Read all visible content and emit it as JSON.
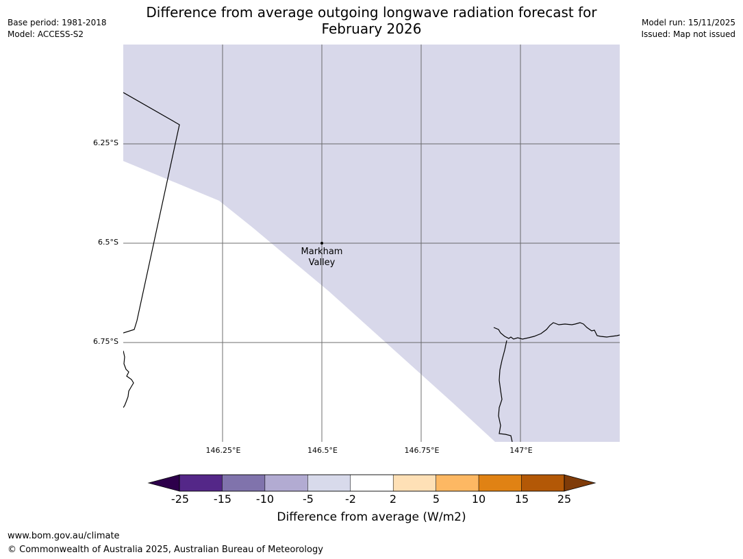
{
  "header": {
    "base_period": "Base period: 1981-2018",
    "model": "Model: ACCESS-S2",
    "title_line1": "Difference from average outgoing longwave radiation forecast for",
    "title_line2": "February 2026",
    "model_run": "Model run: 15/11/2025",
    "issued": "Issued: Map not issued"
  },
  "map": {
    "latitude_labels": [
      "6.25°S",
      "6.5°S",
      "6.75°S"
    ],
    "longitude_labels": [
      "146.25°E",
      "146.5°E",
      "146.75°E",
      "147°E"
    ],
    "place": {
      "name_line1": "Markham",
      "name_line2": "Valley",
      "lat": "6.5°S",
      "lon": "146.5°E"
    },
    "shaded_category": "-5 to -2",
    "colors": {
      "shaded": "#d8d8ea",
      "grid": "#555555",
      "coast": "#000000"
    }
  },
  "colorbar": {
    "title": "Difference from average (W/m2)",
    "ticks": [
      "-25",
      "-15",
      "-10",
      "-5",
      "-2",
      "2",
      "5",
      "10",
      "15",
      "25"
    ],
    "colors": {
      "under": "#2d004b",
      "bins": [
        "#542788",
        "#8073ac",
        "#b2abd2",
        "#d8daeb",
        "#ffffff",
        "#fee0b6",
        "#fdb863",
        "#e08214",
        "#b35806"
      ],
      "over": "#7f3b08"
    }
  },
  "footer": {
    "url": "www.bom.gov.au/climate",
    "copyright": "© Commonwealth of Australia 2025, Australian Bureau of Meteorology"
  }
}
